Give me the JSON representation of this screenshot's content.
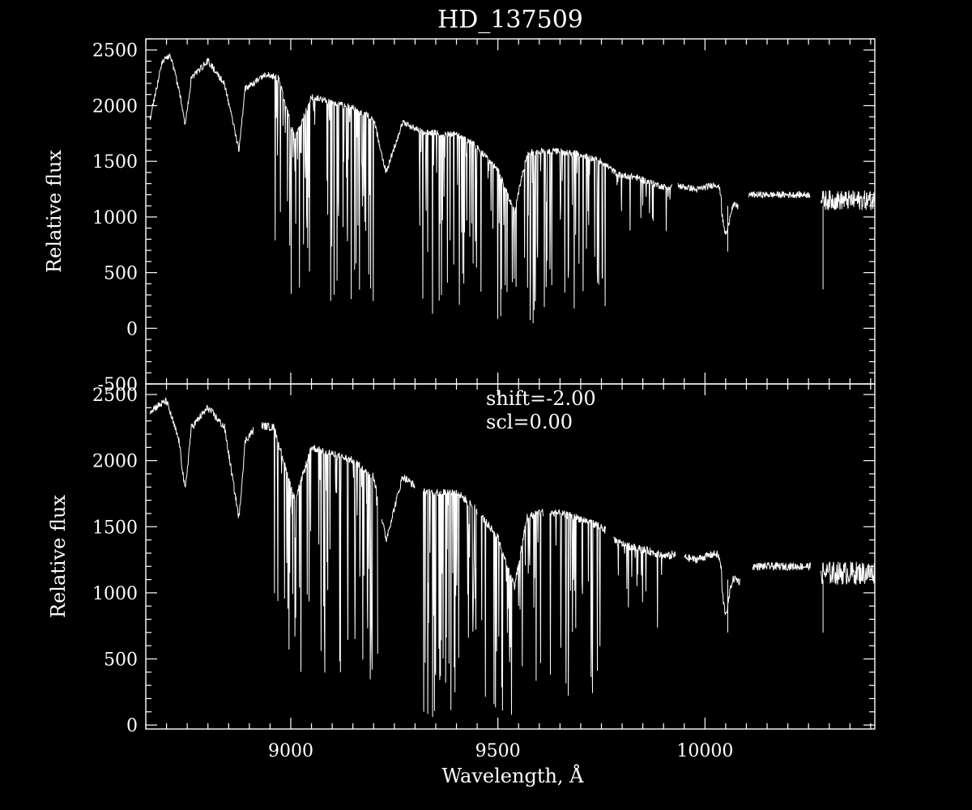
{
  "chart_data": {
    "type": "line",
    "title": "HD_137509",
    "xlabel": "Wavelength, Å",
    "xlim": [
      8650,
      10410
    ],
    "x_ticks": [
      9000,
      9500,
      10000
    ],
    "colors": {
      "background": "#000000",
      "foreground": "#ffffff"
    },
    "grid": false,
    "panels": [
      {
        "name": "top",
        "ylabel": "Relative flux",
        "ylim": [
          -500,
          2600
        ],
        "y_ticks": [
          -500,
          0,
          500,
          1000,
          1500,
          2000,
          2500
        ],
        "y_tick_labels": [
          "-500",
          "0",
          "500",
          "1000",
          "1500",
          "2000",
          "2500"
        ],
        "annotations": [],
        "series": [
          {
            "continuum": [
              [
                8660,
                1880
              ],
              [
                8690,
                2400
              ],
              [
                8710,
                2450
              ],
              [
                8730,
                2150
              ],
              [
                8745,
                1820
              ],
              [
                8760,
                2250
              ],
              [
                8800,
                2400
              ],
              [
                8840,
                2200
              ],
              [
                8875,
                1600
              ],
              [
                8890,
                2150
              ],
              [
                8940,
                2280
              ],
              [
                8970,
                2250
              ],
              [
                9010,
                1700
              ],
              [
                9050,
                2080
              ],
              [
                9150,
                1980
              ],
              [
                9200,
                1880
              ],
              [
                9230,
                1400
              ],
              [
                9270,
                1850
              ],
              [
                9320,
                1760
              ],
              [
                9400,
                1740
              ],
              [
                9440,
                1660
              ],
              [
                9500,
                1420
              ],
              [
                9540,
                1050
              ],
              [
                9570,
                1570
              ],
              [
                9600,
                1590
              ],
              [
                9650,
                1590
              ],
              [
                9700,
                1560
              ],
              [
                9750,
                1500
              ],
              [
                9790,
                1380
              ],
              [
                9830,
                1360
              ],
              [
                9860,
                1320
              ],
              [
                9900,
                1270
              ],
              [
                9920,
                1270
              ]
            ],
            "segments": [
              [
                8660,
                9920
              ],
              [
                9935,
                10080
              ],
              [
                10105,
                10255
              ],
              [
                10280,
                10410
              ]
            ],
            "absorption_zones": [
              [
                8960,
                9000,
                0.3,
                0.95
              ],
              [
                9000,
                9200,
                0.12,
                0.95
              ],
              [
                9310,
                9350,
                0.005,
                0.9
              ],
              [
                9350,
                9480,
                0.0,
                0.95
              ],
              [
                9480,
                9590,
                0.0,
                0.9
              ],
              [
                9590,
                9760,
                0.1,
                0.9
              ]
            ],
            "extra_features": [
              [
                9975,
                10040,
                1240,
                1310
              ],
              [
                10040,
                10080,
                1200,
                1090
              ]
            ],
            "deep_lines": [
              [
                10055,
                690
              ],
              [
                10285,
                350
              ]
            ]
          }
        ]
      },
      {
        "name": "bottom",
        "ylabel": "Relative flux",
        "ylim": [
          -30,
          2580
        ],
        "y_ticks": [
          0,
          500,
          1000,
          1500,
          2000,
          2500
        ],
        "y_tick_labels": [
          "0",
          "500",
          "1000",
          "1500",
          "2000",
          "2500"
        ],
        "annotations": [
          "shift=-2.00",
          "scl=0.00"
        ],
        "series": [
          {
            "continuum": [
              [
                8660,
                2380
              ],
              [
                8700,
                2450
              ],
              [
                8730,
                2150
              ],
              [
                8745,
                1770
              ],
              [
                8760,
                2250
              ],
              [
                8800,
                2400
              ],
              [
                8840,
                2250
              ],
              [
                8875,
                1560
              ],
              [
                8890,
                2150
              ],
              [
                8920,
                2270
              ],
              [
                8960,
                2250
              ],
              [
                9010,
                1700
              ],
              [
                9050,
                2100
              ],
              [
                9150,
                2000
              ],
              [
                9200,
                1880
              ],
              [
                9230,
                1400
              ],
              [
                9270,
                1880
              ],
              [
                9320,
                1760
              ],
              [
                9400,
                1760
              ],
              [
                9440,
                1660
              ],
              [
                9500,
                1420
              ],
              [
                9540,
                1050
              ],
              [
                9570,
                1570
              ],
              [
                9600,
                1610
              ],
              [
                9650,
                1600
              ],
              [
                9700,
                1560
              ],
              [
                9750,
                1500
              ],
              [
                9790,
                1380
              ],
              [
                9830,
                1340
              ],
              [
                9860,
                1320
              ],
              [
                9900,
                1280
              ],
              [
                9930,
                1280
              ]
            ],
            "segments": [
              [
                8660,
                8910
              ],
              [
                8930,
                9210
              ],
              [
                9220,
                9300
              ],
              [
                9320,
                9450
              ],
              [
                9460,
                9610
              ],
              [
                9625,
                9760
              ],
              [
                9780,
                9930
              ],
              [
                9950,
                10085
              ],
              [
                10115,
                10255
              ],
              [
                10280,
                10410
              ]
            ],
            "absorption_zones": [
              [
                8960,
                9000,
                0.3,
                0.95
              ],
              [
                9000,
                9210,
                0.12,
                0.95
              ],
              [
                9320,
                9350,
                0.005,
                0.9
              ],
              [
                9350,
                9450,
                0.0,
                0.95
              ],
              [
                9460,
                9610,
                0.0,
                0.9
              ],
              [
                9625,
                9760,
                0.1,
                0.9
              ]
            ],
            "extra_features": [
              [
                9975,
                10040,
                1250,
                1310
              ],
              [
                10040,
                10085,
                1200,
                1080
              ]
            ],
            "deep_lines": [
              [
                10055,
                700
              ],
              [
                10285,
                700
              ]
            ]
          }
        ]
      }
    ]
  }
}
